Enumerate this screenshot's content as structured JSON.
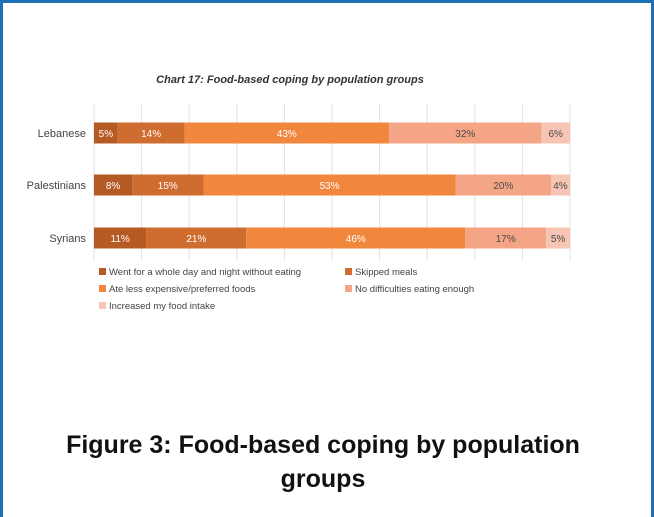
{
  "colors": {
    "frame": "#1f6fb4",
    "went_whole_day": "#b65a24",
    "skipped_meals": "#cf6c30",
    "ate_less_expensive": "#f0873d",
    "no_difficulties": "#f4a586",
    "increased_intake": "#f7c5b3"
  },
  "figure_caption": {
    "line1": "Figure 3: Food-based coping by population",
    "line2": "groups"
  },
  "chart_data": {
    "type": "bar",
    "orientation": "horizontal",
    "stacked": true,
    "title": "Chart 17: Food-based coping by population groups",
    "categories": [
      "Lebanese",
      "Palestinians",
      "Syrians"
    ],
    "series": [
      {
        "name": "Went for a whole day and night without eating",
        "values": [
          5,
          8,
          11
        ],
        "color": "#b65a24"
      },
      {
        "name": "Skipped meals",
        "values": [
          14,
          15,
          21
        ],
        "color": "#cf6c30"
      },
      {
        "name": "Ate less expensive/preferred foods",
        "values": [
          43,
          53,
          46
        ],
        "color": "#f0873d"
      },
      {
        "name": "No difficulties eating enough",
        "values": [
          32,
          20,
          17
        ],
        "color": "#f4a586"
      },
      {
        "name": "Increased my food intake",
        "values": [
          6,
          4,
          5
        ],
        "color": "#f7c5b3"
      }
    ],
    "value_suffix": "%",
    "xlim": [
      0,
      100
    ],
    "legend_position": "bottom",
    "grid": true
  }
}
